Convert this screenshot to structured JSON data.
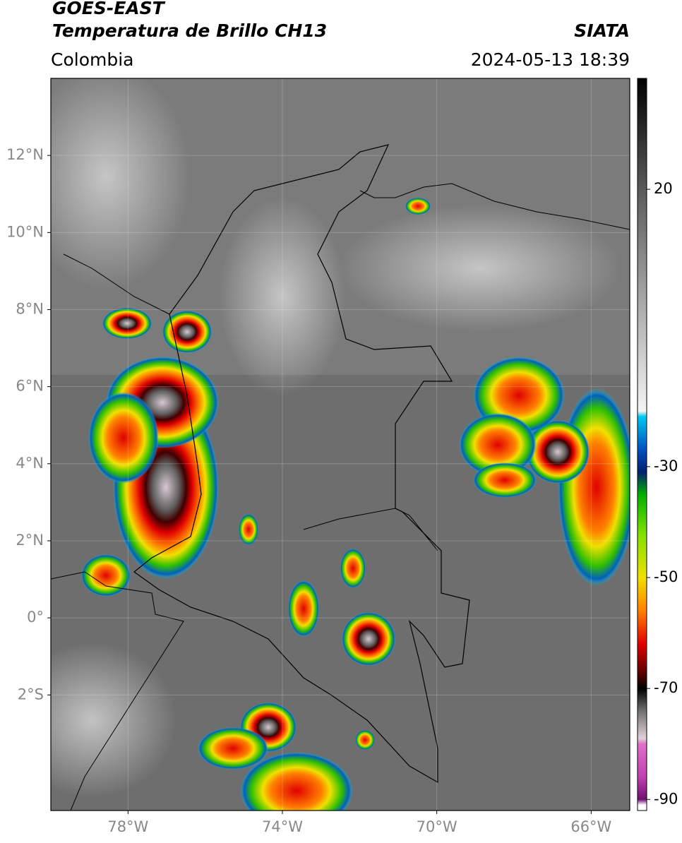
{
  "header": {
    "satellite": "GOES-EAST",
    "product": "Temperatura de Brillo CH13",
    "source": "SIATA",
    "region": "Colombia",
    "datetime": "2024-05-13 18:39"
  },
  "map": {
    "lonlim": [
      -80,
      -65
    ],
    "latlim": [
      -5,
      14
    ],
    "xticks": [
      {
        "value": -78,
        "label": "78°W"
      },
      {
        "value": -74,
        "label": "74°W"
      },
      {
        "value": -70,
        "label": "70°W"
      },
      {
        "value": -66,
        "label": "66°W"
      }
    ],
    "yticks": [
      {
        "value": 12,
        "label": "12°N"
      },
      {
        "value": 10,
        "label": "10°N"
      },
      {
        "value": 8,
        "label": "8°N"
      },
      {
        "value": 6,
        "label": "6°N"
      },
      {
        "value": 4,
        "label": "4°N"
      },
      {
        "value": 2,
        "label": "2°N"
      },
      {
        "value": 0,
        "label": "0°"
      },
      {
        "value": -2,
        "label": "2°S"
      }
    ],
    "grid": true
  },
  "colorbar": {
    "lim": [
      -92,
      40
    ],
    "ticks": [
      20,
      -30,
      -50,
      -70,
      -90
    ],
    "colormap": [
      {
        "value": 40,
        "color": "#000000"
      },
      {
        "value": 20,
        "color": "#5a5a5a"
      },
      {
        "value": -20,
        "color": "#f4f4f4"
      },
      {
        "value": -21,
        "color": "#00c8f0"
      },
      {
        "value": -27,
        "color": "#0050c0"
      },
      {
        "value": -31,
        "color": "#002070"
      },
      {
        "value": -35,
        "color": "#00b000"
      },
      {
        "value": -42,
        "color": "#80e000"
      },
      {
        "value": -50,
        "color": "#f0e000"
      },
      {
        "value": -56,
        "color": "#ff8000"
      },
      {
        "value": -62,
        "color": "#e00000"
      },
      {
        "value": -67,
        "color": "#600000"
      },
      {
        "value": -70,
        "color": "#000000"
      },
      {
        "value": -74,
        "color": "#707070"
      },
      {
        "value": -79,
        "color": "#e0d0d8"
      },
      {
        "value": -80,
        "color": "#e070c8"
      },
      {
        "value": -86,
        "color": "#c040b0"
      },
      {
        "value": -90,
        "color": "#701070"
      },
      {
        "value": -91,
        "color": "#ffffff"
      }
    ]
  }
}
